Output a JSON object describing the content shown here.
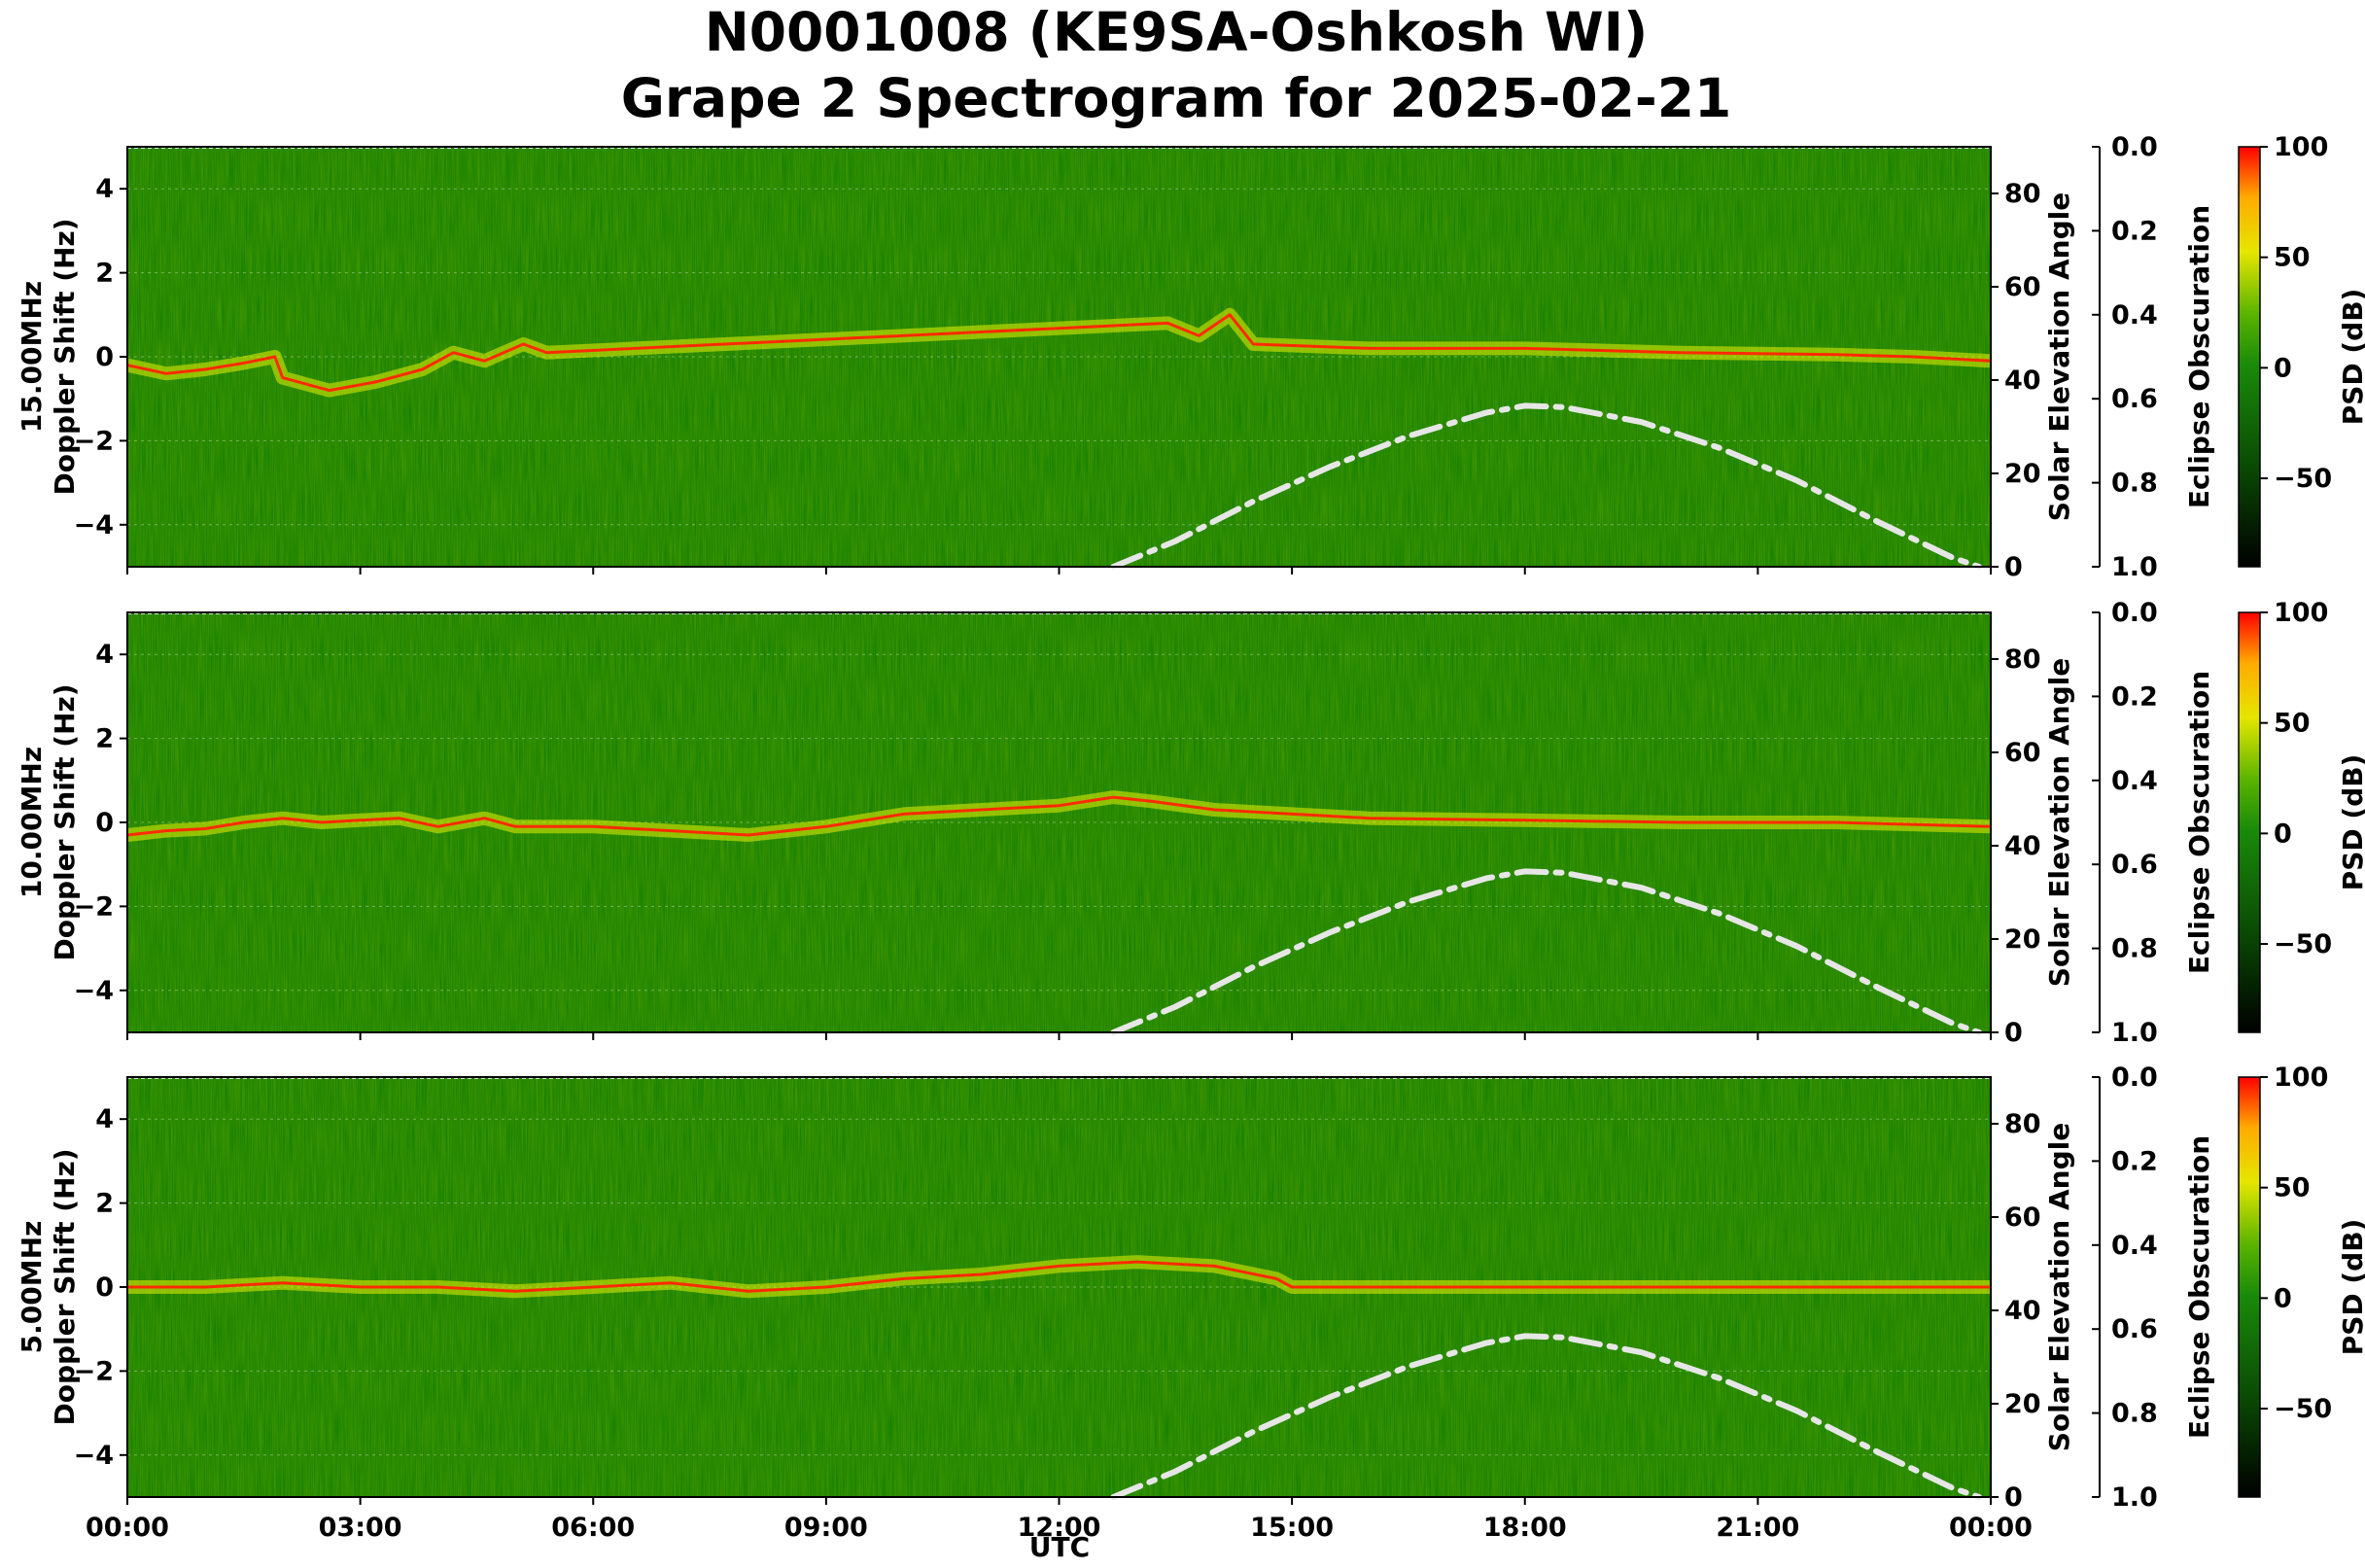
{
  "title_line1": "N0001008 (KE9SA-Oshkosh WI)",
  "title_line2": "Grape 2 Spectrogram for 2025-02-21",
  "xlabel": "UTC",
  "colors": {
    "bg_green": "#0a7a00",
    "trace": "#e8f000",
    "peak": "#ff2a00",
    "elevation_curve": "#e6e6e6"
  },
  "chart_data": [
    {
      "type": "heatmap",
      "frequency_label": "15.00MHz",
      "ylabel": "15.00MHz\nDoppler Shift (Hz)",
      "y_ticks": [
        4,
        2,
        0,
        -2,
        -4
      ],
      "ylim": [
        -5,
        5
      ],
      "x_ticks": [
        "00:00",
        "03:00",
        "06:00",
        "09:00",
        "12:00",
        "15:00",
        "18:00",
        "21:00",
        "00:00"
      ],
      "xlim_hours": [
        0,
        24
      ],
      "right_axis": {
        "label": "Solar Elevation Angle",
        "ticks": [
          80,
          60,
          40,
          20,
          0
        ],
        "ylim": [
          0,
          90
        ]
      },
      "eclipse_axis": {
        "label": "Eclipse Obscuration",
        "ticks": [
          "0.0",
          "0.2",
          "0.4",
          "0.6",
          "0.8",
          "1.0"
        ],
        "ylim": [
          0,
          1
        ]
      },
      "colorbar": {
        "label": "PSD (dB)",
        "ticks": [
          100,
          50,
          0,
          -50
        ],
        "range": [
          -90,
          100
        ]
      },
      "doppler_trace": [
        [
          0,
          -0.2
        ],
        [
          0.5,
          -0.4
        ],
        [
          1,
          -0.3
        ],
        [
          1.5,
          -0.15
        ],
        [
          1.9,
          0
        ],
        [
          2.0,
          -0.5
        ],
        [
          2.6,
          -0.8
        ],
        [
          3.2,
          -0.6
        ],
        [
          3.8,
          -0.3
        ],
        [
          4.2,
          0.1
        ],
        [
          4.6,
          -0.1
        ],
        [
          5.1,
          0.3
        ],
        [
          5.4,
          0.1
        ],
        [
          13.4,
          0.8
        ],
        [
          13.8,
          0.5
        ],
        [
          14.2,
          1.0
        ],
        [
          14.5,
          0.3
        ],
        [
          16,
          0.2
        ],
        [
          18,
          0.2
        ],
        [
          20,
          0.1
        ],
        [
          22,
          0.05
        ],
        [
          23,
          0
        ],
        [
          24,
          -0.1
        ]
      ],
      "solar_elevation": [
        [
          12.7,
          0
        ],
        [
          13.5,
          5.5
        ],
        [
          14.5,
          14
        ],
        [
          15.5,
          21.5
        ],
        [
          16.5,
          28
        ],
        [
          17.5,
          33
        ],
        [
          18,
          34.5
        ],
        [
          18.5,
          34.2
        ],
        [
          19.5,
          31
        ],
        [
          20.5,
          25.5
        ],
        [
          21.5,
          18.5
        ],
        [
          22.5,
          10
        ],
        [
          23.5,
          2
        ],
        [
          23.85,
          0
        ]
      ]
    },
    {
      "type": "heatmap",
      "frequency_label": "10.00MHz",
      "ylabel": "10.00MHz\nDoppler Shift (Hz)",
      "y_ticks": [
        4,
        2,
        0,
        -2,
        -4
      ],
      "ylim": [
        -5,
        5
      ],
      "x_ticks": [
        "00:00",
        "03:00",
        "06:00",
        "09:00",
        "12:00",
        "15:00",
        "18:00",
        "21:00",
        "00:00"
      ],
      "xlim_hours": [
        0,
        24
      ],
      "right_axis": {
        "label": "Solar Elevation Angle",
        "ticks": [
          80,
          60,
          40,
          20,
          0
        ],
        "ylim": [
          0,
          90
        ]
      },
      "eclipse_axis": {
        "label": "Eclipse Obscuration",
        "ticks": [
          "0.0",
          "0.2",
          "0.4",
          "0.6",
          "0.8",
          "1.0"
        ],
        "ylim": [
          0,
          1
        ]
      },
      "colorbar": {
        "label": "PSD (dB)",
        "ticks": [
          100,
          50,
          0,
          -50
        ],
        "range": [
          -90,
          100
        ]
      },
      "doppler_trace": [
        [
          0,
          -0.3
        ],
        [
          0.5,
          -0.2
        ],
        [
          1,
          -0.15
        ],
        [
          1.5,
          0
        ],
        [
          2,
          0.1
        ],
        [
          2.5,
          0
        ],
        [
          3,
          0.05
        ],
        [
          3.5,
          0.1
        ],
        [
          4,
          -0.1
        ],
        [
          4.6,
          0.1
        ],
        [
          5,
          -0.1
        ],
        [
          6,
          -0.1
        ],
        [
          7,
          -0.2
        ],
        [
          8,
          -0.3
        ],
        [
          9,
          -0.1
        ],
        [
          10,
          0.2
        ],
        [
          11,
          0.3
        ],
        [
          12,
          0.4
        ],
        [
          12.7,
          0.6
        ],
        [
          13.2,
          0.5
        ],
        [
          14,
          0.3
        ],
        [
          16,
          0.1
        ],
        [
          18,
          0.05
        ],
        [
          20,
          0
        ],
        [
          22,
          0
        ],
        [
          24,
          -0.1
        ]
      ],
      "solar_elevation": [
        [
          12.7,
          0
        ],
        [
          13.5,
          5.5
        ],
        [
          14.5,
          14
        ],
        [
          15.5,
          21.5
        ],
        [
          16.5,
          28
        ],
        [
          17.5,
          33
        ],
        [
          18,
          34.5
        ],
        [
          18.5,
          34.2
        ],
        [
          19.5,
          31
        ],
        [
          20.5,
          25.5
        ],
        [
          21.5,
          18.5
        ],
        [
          22.5,
          10
        ],
        [
          23.5,
          2
        ],
        [
          23.85,
          0
        ]
      ]
    },
    {
      "type": "heatmap",
      "frequency_label": "5.00MHz",
      "ylabel": "5.00MHz\nDoppler Shift (Hz)",
      "y_ticks": [
        4,
        2,
        0,
        -2,
        -4
      ],
      "ylim": [
        -5,
        5
      ],
      "x_ticks": [
        "00:00",
        "03:00",
        "06:00",
        "09:00",
        "12:00",
        "15:00",
        "18:00",
        "21:00",
        "00:00"
      ],
      "xlim_hours": [
        0,
        24
      ],
      "right_axis": {
        "label": "Solar Elevation Angle",
        "ticks": [
          80,
          60,
          40,
          20,
          0
        ],
        "ylim": [
          0,
          90
        ]
      },
      "eclipse_axis": {
        "label": "Eclipse Obscuration",
        "ticks": [
          "0.0",
          "0.2",
          "0.4",
          "0.6",
          "0.8",
          "1.0"
        ],
        "ylim": [
          0,
          1
        ]
      },
      "colorbar": {
        "label": "PSD (dB)",
        "ticks": [
          100,
          50,
          0,
          -50
        ],
        "range": [
          -90,
          100
        ]
      },
      "doppler_trace": [
        [
          0,
          0
        ],
        [
          1,
          0
        ],
        [
          2,
          0.1
        ],
        [
          3,
          0
        ],
        [
          4,
          0
        ],
        [
          5,
          -0.1
        ],
        [
          6,
          0
        ],
        [
          7,
          0.1
        ],
        [
          8,
          -0.1
        ],
        [
          9,
          0
        ],
        [
          10,
          0.2
        ],
        [
          11,
          0.3
        ],
        [
          12,
          0.5
        ],
        [
          13,
          0.6
        ],
        [
          14,
          0.5
        ],
        [
          14.8,
          0.2
        ],
        [
          15,
          0
        ],
        [
          24,
          0
        ]
      ],
      "solar_elevation": [
        [
          12.7,
          0
        ],
        [
          13.5,
          5.5
        ],
        [
          14.5,
          14
        ],
        [
          15.5,
          21.5
        ],
        [
          16.5,
          28
        ],
        [
          17.5,
          33
        ],
        [
          18,
          34.5
        ],
        [
          18.5,
          34.2
        ],
        [
          19.5,
          31
        ],
        [
          20.5,
          25.5
        ],
        [
          21.5,
          18.5
        ],
        [
          22.5,
          10
        ],
        [
          23.5,
          2
        ],
        [
          23.85,
          0
        ]
      ]
    }
  ]
}
